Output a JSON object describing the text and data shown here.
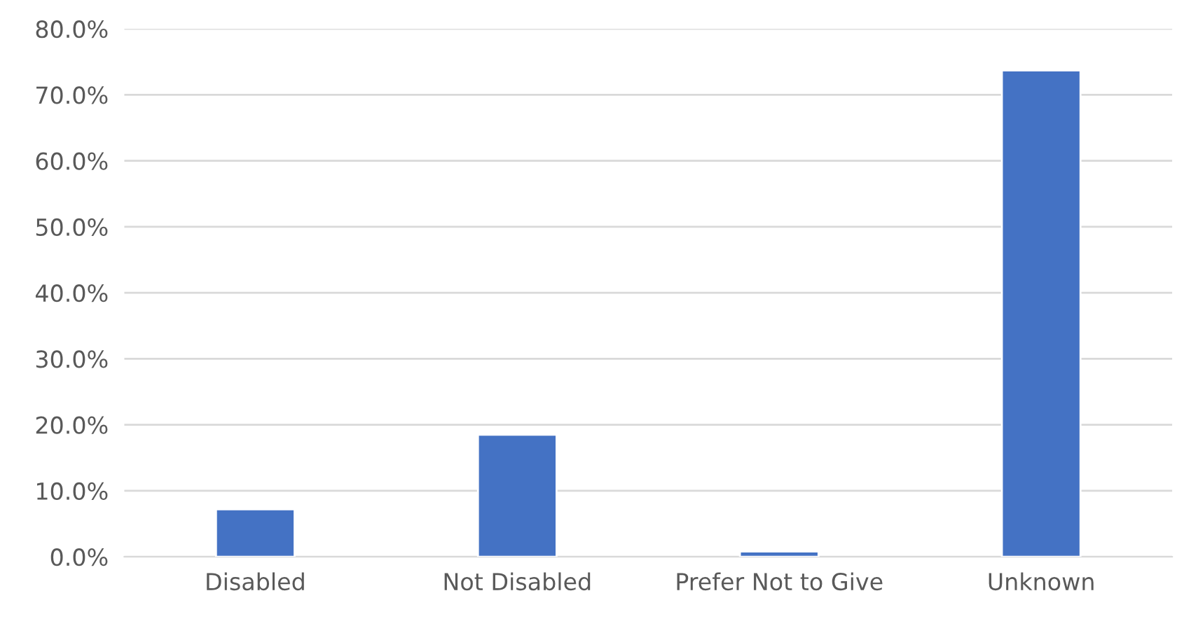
{
  "chart_data": {
    "type": "bar",
    "categories": [
      "Disabled",
      "Not Disabled",
      "Prefer Not to Give",
      "Unknown"
    ],
    "values": [
      7.2,
      18.5,
      0.8,
      73.7
    ],
    "color": "#4472c4",
    "ylim": [
      0,
      80
    ],
    "yticks": [
      {
        "value": 0,
        "label": "0.0%"
      },
      {
        "value": 10,
        "label": "10.0%"
      },
      {
        "value": 20,
        "label": "20.0%"
      },
      {
        "value": 30,
        "label": "30.0%"
      },
      {
        "value": 40,
        "label": "40.0%"
      },
      {
        "value": 50,
        "label": "50.0%"
      },
      {
        "value": 60,
        "label": "60.0%"
      },
      {
        "value": 70,
        "label": "70.0%"
      },
      {
        "value": 80,
        "label": "80.0%"
      }
    ],
    "grid": "y"
  }
}
